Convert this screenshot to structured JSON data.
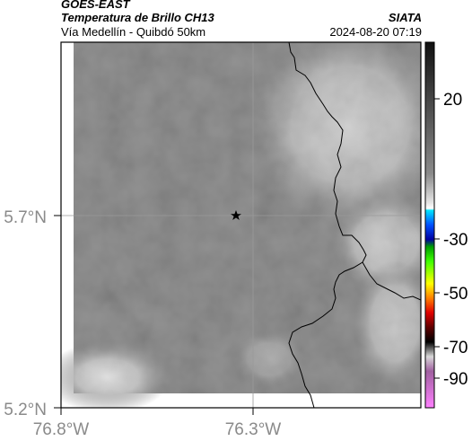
{
  "header": {
    "title": "GOES-EAST",
    "product": "Temperatura de Brillo CH13",
    "organization": "SIATA",
    "region": "Vía Medellín - Quibdó 50km",
    "timestamp": "2024-08-20 07:19"
  },
  "map": {
    "lat_ticks": [
      "5.7°N",
      "5.2°N"
    ],
    "lon_ticks": [
      "76.8°W",
      "76.3°W"
    ],
    "marker": "star-icon"
  },
  "colorbar": {
    "ticks": [
      "20",
      "-30",
      "-50",
      "-70",
      "-90"
    ]
  }
}
